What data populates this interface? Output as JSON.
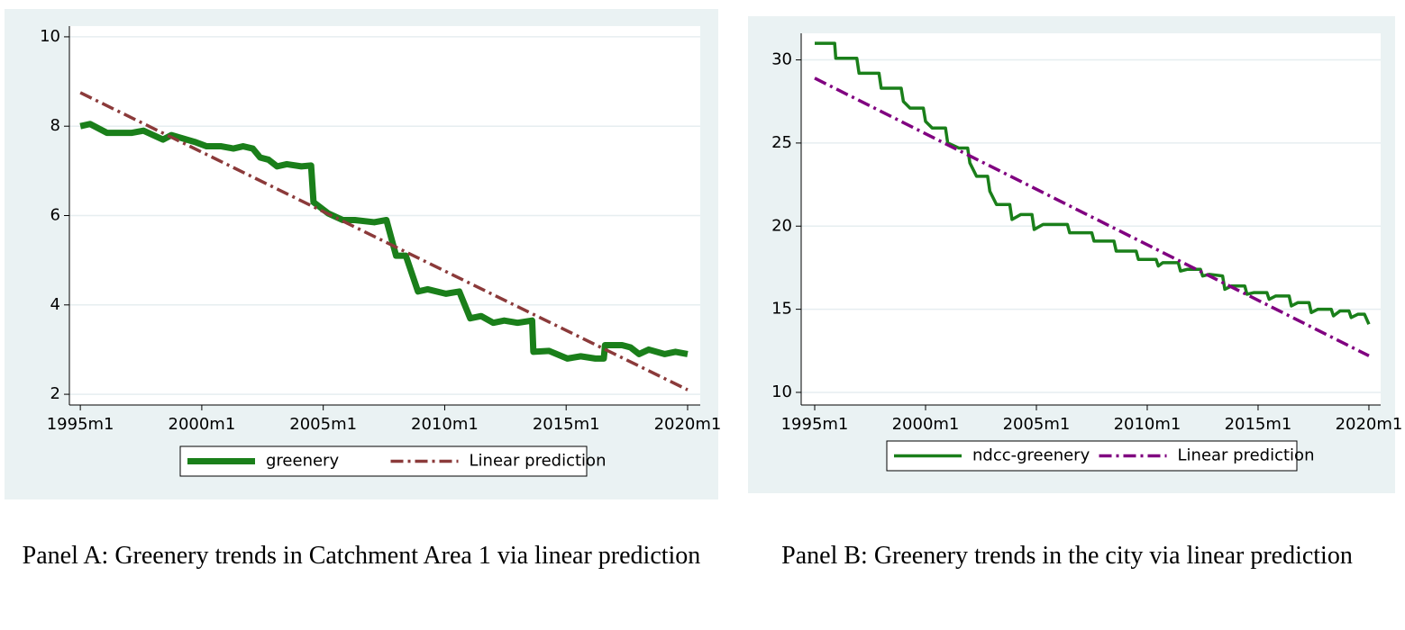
{
  "chart_data": [
    {
      "type": "line",
      "caption": "Panel A: Greenery trends in Catchment Area 1 via linear prediction",
      "xlim": [
        1994.55,
        2020.52
      ],
      "ylim": [
        1.76,
        10.24
      ],
      "xticks": [
        {
          "value": 1995,
          "label": "1995m1"
        },
        {
          "value": 2000,
          "label": "2000m1"
        },
        {
          "value": 2005,
          "label": "2005m1"
        },
        {
          "value": 2010,
          "label": "2010m1"
        },
        {
          "value": 2015,
          "label": "2015m1"
        },
        {
          "value": 2020,
          "label": "2020m1"
        }
      ],
      "yticks": [
        2,
        4,
        6,
        8,
        10
      ],
      "grid": true,
      "series": [
        {
          "name": "greenery",
          "color": "#1a7f1a",
          "linewidth": 7,
          "line_style": "solid",
          "x": [
            1995.0,
            1995.4,
            1996.1,
            1997.1,
            1997.6,
            1998.4,
            1998.75,
            1999.7,
            2000.2,
            2000.8,
            2001.3,
            2001.7,
            2002.1,
            2002.4,
            2002.75,
            2003.1,
            2003.5,
            2004.1,
            2004.5,
            2004.6,
            2005.2,
            2005.8,
            2006.3,
            2007.1,
            2007.6,
            2008.0,
            2008.4,
            2008.9,
            2009.3,
            2010.05,
            2010.6,
            2011.05,
            2011.5,
            2012.0,
            2012.45,
            2013.0,
            2013.6,
            2013.65,
            2014.3,
            2015.05,
            2015.6,
            2016.2,
            2016.55,
            2016.6,
            2017.3,
            2017.65,
            2018.0,
            2018.4,
            2019.05,
            2019.5,
            2020.0
          ],
          "values": [
            8.0,
            8.05,
            7.85,
            7.85,
            7.9,
            7.7,
            7.8,
            7.65,
            7.55,
            7.55,
            7.5,
            7.55,
            7.5,
            7.3,
            7.25,
            7.1,
            7.15,
            7.1,
            7.12,
            6.3,
            6.05,
            5.9,
            5.9,
            5.85,
            5.9,
            5.1,
            5.1,
            4.3,
            4.35,
            4.25,
            4.3,
            3.7,
            3.75,
            3.6,
            3.65,
            3.6,
            3.65,
            2.95,
            2.97,
            2.8,
            2.85,
            2.8,
            2.8,
            3.1,
            3.1,
            3.05,
            2.9,
            3.0,
            2.9,
            2.95,
            2.9
          ]
        },
        {
          "name": "Linear prediction",
          "color": "#8b3a3a",
          "linewidth": 3.5,
          "line_style": "dash-dot",
          "x": [
            1995.0,
            2020.0
          ],
          "values": [
            8.75,
            2.1
          ]
        }
      ]
    },
    {
      "type": "line",
      "caption": "Panel B: Greenery trends in the city via linear prediction",
      "xlim": [
        1994.39,
        2020.53
      ],
      "ylim": [
        9.24,
        31.6
      ],
      "xticks": [
        {
          "value": 1995,
          "label": "1995m1"
        },
        {
          "value": 2000,
          "label": "2000m1"
        },
        {
          "value": 2005,
          "label": "2005m1"
        },
        {
          "value": 2010,
          "label": "2010m1"
        },
        {
          "value": 2015,
          "label": "2015m1"
        },
        {
          "value": 2020,
          "label": "2020m1"
        }
      ],
      "yticks": [
        10,
        15,
        20,
        25,
        30
      ],
      "grid": true,
      "series": [
        {
          "name": "ndcc-greenery",
          "color": "#1a7f1a",
          "linewidth": 3.5,
          "line_style": "solid",
          "x": [
            1995.0,
            1995.9,
            1995.95,
            1996.9,
            1997.0,
            1997.9,
            1998.0,
            1998.9,
            1999.0,
            1999.3,
            1999.9,
            2000.0,
            2000.3,
            2000.9,
            2001.0,
            2001.5,
            2001.9,
            2002.0,
            2002.3,
            2002.8,
            2002.9,
            2003.2,
            2003.8,
            2003.9,
            2004.3,
            2004.8,
            2004.9,
            2005.3,
            2006.4,
            2006.5,
            2007.5,
            2007.6,
            2008.5,
            2008.6,
            2009.5,
            2009.6,
            2010.4,
            2010.5,
            2010.7,
            2011.4,
            2011.5,
            2011.8,
            2012.4,
            2012.5,
            2012.8,
            2013.4,
            2013.5,
            2013.8,
            2014.4,
            2014.5,
            2014.8,
            2015.4,
            2015.5,
            2015.8,
            2016.4,
            2016.5,
            2016.8,
            2017.3,
            2017.4,
            2017.7,
            2018.3,
            2018.4,
            2018.7,
            2019.1,
            2019.2,
            2019.5,
            2019.8,
            2020.0
          ],
          "values": [
            31.0,
            31.0,
            30.1,
            30.1,
            29.2,
            29.2,
            28.3,
            28.3,
            27.5,
            27.1,
            27.1,
            26.3,
            25.9,
            25.9,
            25.0,
            24.7,
            24.7,
            23.8,
            23.0,
            23.0,
            22.1,
            21.3,
            21.3,
            20.4,
            20.7,
            20.7,
            19.8,
            20.1,
            20.1,
            19.6,
            19.6,
            19.1,
            19.1,
            18.5,
            18.5,
            18.0,
            18.0,
            17.6,
            17.8,
            17.8,
            17.3,
            17.4,
            17.4,
            17.0,
            17.1,
            17.0,
            16.2,
            16.4,
            16.4,
            15.9,
            16.0,
            16.0,
            15.6,
            15.8,
            15.8,
            15.2,
            15.4,
            15.4,
            14.8,
            15.0,
            15.0,
            14.6,
            14.9,
            14.9,
            14.5,
            14.7,
            14.7,
            14.1
          ]
        },
        {
          "name": "Linear prediction",
          "color": "#800080",
          "linewidth": 3.5,
          "line_style": "dash-dot",
          "x": [
            1995.0,
            2020.0
          ],
          "values": [
            28.9,
            12.2
          ]
        }
      ]
    }
  ]
}
